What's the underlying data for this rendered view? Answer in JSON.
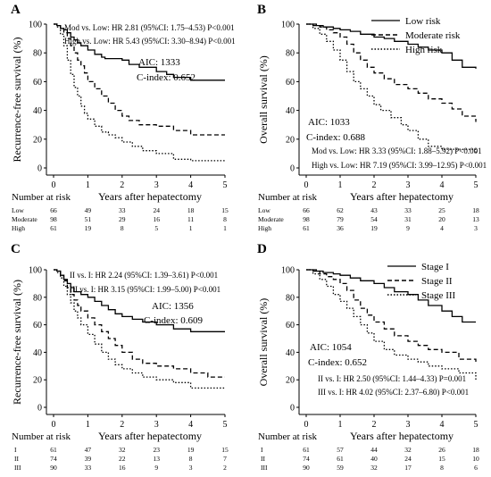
{
  "chart_data": [
    {
      "type": "line",
      "panel_label": "A",
      "ylabel": "Recurrence-free survival (%)",
      "xlabel": "Years after hepatectomy",
      "xlim": [
        0,
        5
      ],
      "ylim": [
        0,
        100
      ],
      "x_ticks": [
        "0",
        "1",
        "2",
        "3",
        "4",
        "5"
      ],
      "y_ticks": [
        "0",
        "20",
        "40",
        "60",
        "80",
        "100"
      ],
      "annotations": [
        "Mod vs. Low: HR 2.81 (95%CI: 1.75–4.53)   P<0.001",
        "High vs. Low: HR 5.43 (95%CI: 3.30–8.94) P<0.001",
        "AIC: 1333",
        "C-index: 0.652"
      ],
      "legend": [],
      "series": [
        {
          "style": "solid",
          "x": [
            0,
            0.1,
            0.2,
            0.3,
            0.4,
            0.5,
            0.6,
            0.7,
            0.8,
            1.0,
            1.2,
            1.4,
            1.5,
            2.0,
            2.2,
            2.5,
            3.0,
            3.3,
            3.5,
            3.8,
            4.0,
            4.5,
            5.0
          ],
          "y": [
            100,
            99,
            97,
            96,
            94,
            91,
            89,
            87,
            85,
            82,
            79,
            77,
            76,
            75,
            72,
            70,
            67,
            65,
            63,
            63,
            61,
            61,
            61
          ]
        },
        {
          "style": "dashed",
          "x": [
            0,
            0.1,
            0.2,
            0.3,
            0.4,
            0.5,
            0.6,
            0.7,
            0.8,
            0.9,
            1.0,
            1.2,
            1.4,
            1.6,
            1.8,
            2.0,
            2.2,
            2.5,
            3.0,
            3.5,
            4.0,
            4.5,
            5.0
          ],
          "y": [
            100,
            99,
            97,
            94,
            90,
            85,
            80,
            75,
            71,
            66,
            60,
            55,
            50,
            45,
            40,
            36,
            33,
            30,
            29,
            26,
            23,
            23,
            23
          ]
        },
        {
          "style": "dotted",
          "x": [
            0,
            0.1,
            0.2,
            0.3,
            0.4,
            0.5,
            0.6,
            0.7,
            0.8,
            0.9,
            1.0,
            1.2,
            1.4,
            1.6,
            1.8,
            2.0,
            2.3,
            2.6,
            3.0,
            3.5,
            4.0,
            5.0
          ],
          "y": [
            100,
            98,
            93,
            85,
            75,
            65,
            56,
            50,
            43,
            38,
            34,
            29,
            25,
            23,
            21,
            18,
            15,
            12,
            10,
            6,
            5,
            5
          ]
        }
      ],
      "risk_table": {
        "header": "Number at risk",
        "rows": [
          {
            "label": "Low",
            "values": [
              "66",
              "49",
              "33",
              "24",
              "18",
              "15"
            ]
          },
          {
            "label": "Moderate",
            "values": [
              "98",
              "51",
              "29",
              "16",
              "11",
              "8"
            ]
          },
          {
            "label": "High",
            "values": [
              "61",
              "19",
              "8",
              "5",
              "1",
              "1"
            ]
          }
        ]
      }
    },
    {
      "type": "line",
      "panel_label": "B",
      "ylabel": "Overall survival (%)",
      "xlabel": "Years after hepatectomy",
      "xlim": [
        0,
        5
      ],
      "ylim": [
        0,
        100
      ],
      "x_ticks": [
        "0",
        "1",
        "2",
        "3",
        "4",
        "5"
      ],
      "y_ticks": [
        "0",
        "20",
        "40",
        "60",
        "80",
        "100"
      ],
      "annotations": [
        "AIC: 1033",
        "C-index: 0.688",
        "Mod vs. Low: HR 3.33 (95%CI: 1.88–5.92)   P<0.001",
        "High vs. Low: HR 7.19 (95%CI: 3.99–12.95) P<0.001"
      ],
      "legend": [
        "Low risk",
        "Moderate risk",
        "High risk"
      ],
      "series": [
        {
          "name": "Low risk",
          "style": "solid",
          "x": [
            0,
            0.3,
            0.5,
            0.8,
            1.0,
            1.3,
            1.6,
            2.0,
            2.3,
            2.6,
            3.0,
            3.3,
            3.6,
            4.0,
            4.3,
            4.6,
            5.0
          ],
          "y": [
            100,
            99,
            98,
            97,
            96,
            95,
            93,
            91,
            90,
            88,
            86,
            84,
            82,
            80,
            75,
            70,
            69
          ]
        },
        {
          "name": "Moderate risk",
          "style": "dashed",
          "x": [
            0,
            0.2,
            0.4,
            0.6,
            0.8,
            1.0,
            1.2,
            1.4,
            1.6,
            1.8,
            2.0,
            2.3,
            2.6,
            3.0,
            3.3,
            3.6,
            4.0,
            4.3,
            4.6,
            5.0
          ],
          "y": [
            100,
            99,
            98,
            96,
            94,
            91,
            86,
            80,
            75,
            70,
            66,
            62,
            58,
            55,
            52,
            48,
            45,
            41,
            36,
            32
          ]
        },
        {
          "name": "High risk",
          "style": "dotted",
          "x": [
            0,
            0.2,
            0.4,
            0.6,
            0.8,
            1.0,
            1.2,
            1.4,
            1.6,
            1.8,
            2.0,
            2.2,
            2.5,
            2.8,
            3.0,
            3.3,
            3.6,
            4.0,
            4.5,
            5.0
          ],
          "y": [
            100,
            97,
            93,
            88,
            82,
            75,
            67,
            60,
            55,
            50,
            44,
            40,
            35,
            30,
            26,
            20,
            15,
            13,
            13,
            10
          ]
        }
      ],
      "risk_table": {
        "header": "Number at risk",
        "rows": [
          {
            "label": "Low",
            "values": [
              "66",
              "62",
              "43",
              "33",
              "25",
              "18"
            ]
          },
          {
            "label": "Moderate",
            "values": [
              "98",
              "79",
              "54",
              "31",
              "20",
              "13"
            ]
          },
          {
            "label": "High",
            "values": [
              "61",
              "36",
              "19",
              "9",
              "4",
              "3"
            ]
          }
        ]
      }
    },
    {
      "type": "line",
      "panel_label": "C",
      "ylabel": "Recurrence-free survival (%)",
      "xlabel": "Years after hepatectomy",
      "xlim": [
        0,
        5
      ],
      "ylim": [
        0,
        100
      ],
      "x_ticks": [
        "0",
        "1",
        "2",
        "3",
        "4",
        "5"
      ],
      "y_ticks": [
        "0",
        "20",
        "40",
        "60",
        "80",
        "100"
      ],
      "annotations": [
        "II vs. I: HR 2.24 (95%CI: 1.39–3.61)   P<0.001",
        "III vs. I: HR 3.15 (95%CI: 1.99–5.00) P<0.001",
        "AIC: 1356",
        "C-index: 0.609"
      ],
      "legend": [],
      "series": [
        {
          "style": "solid",
          "x": [
            0,
            0.1,
            0.2,
            0.3,
            0.4,
            0.5,
            0.6,
            0.8,
            1.0,
            1.2,
            1.4,
            1.6,
            1.8,
            2.0,
            2.3,
            2.6,
            3.0,
            3.5,
            4.0,
            5.0
          ],
          "y": [
            100,
            99,
            96,
            93,
            90,
            87,
            84,
            82,
            80,
            77,
            74,
            71,
            68,
            66,
            64,
            62,
            60,
            57,
            55,
            55
          ]
        },
        {
          "style": "dashed",
          "x": [
            0,
            0.1,
            0.2,
            0.3,
            0.4,
            0.5,
            0.6,
            0.7,
            0.8,
            1.0,
            1.2,
            1.4,
            1.6,
            1.8,
            2.0,
            2.3,
            2.6,
            3.0,
            3.5,
            4.0,
            4.5,
            5.0
          ],
          "y": [
            100,
            99,
            96,
            92,
            87,
            82,
            78,
            74,
            70,
            65,
            60,
            55,
            50,
            45,
            40,
            35,
            32,
            30,
            28,
            25,
            22,
            22
          ]
        },
        {
          "style": "dotted",
          "x": [
            0,
            0.1,
            0.2,
            0.3,
            0.4,
            0.5,
            0.6,
            0.7,
            0.8,
            1.0,
            1.2,
            1.4,
            1.6,
            1.8,
            2.0,
            2.3,
            2.6,
            3.0,
            3.5,
            4.0,
            5.0
          ],
          "y": [
            100,
            98,
            94,
            88,
            82,
            76,
            70,
            65,
            60,
            53,
            46,
            40,
            35,
            31,
            28,
            25,
            22,
            20,
            18,
            14,
            14
          ]
        }
      ],
      "risk_table": {
        "header": "Number at risk",
        "rows": [
          {
            "label": "I",
            "values": [
              "61",
              "47",
              "32",
              "23",
              "19",
              "15"
            ]
          },
          {
            "label": "II",
            "values": [
              "74",
              "39",
              "22",
              "13",
              "8",
              "7"
            ]
          },
          {
            "label": "III",
            "values": [
              "90",
              "33",
              "16",
              "9",
              "3",
              "2"
            ]
          }
        ]
      }
    },
    {
      "type": "line",
      "panel_label": "D",
      "ylabel": "Overall survival (%)",
      "xlabel": "Years after hepatectomy",
      "xlim": [
        0,
        5
      ],
      "ylim": [
        0,
        100
      ],
      "x_ticks": [
        "0",
        "1",
        "2",
        "3",
        "4",
        "5"
      ],
      "y_ticks": [
        "0",
        "20",
        "40",
        "60",
        "80",
        "100"
      ],
      "annotations": [
        "AIC: 1054",
        "C-index: 0.652",
        "II vs. I: HR 2.50 (95%CI: 1.44–4.33)   P=0.001",
        "III vs. I: HR 4.02 (95%CI: 2.37–6.80) P<0.001"
      ],
      "legend": [
        "Stage I",
        "Stage II",
        "Stage III"
      ],
      "series": [
        {
          "name": "Stage I",
          "style": "solid",
          "x": [
            0,
            0.3,
            0.5,
            0.8,
            1.0,
            1.3,
            1.6,
            2.0,
            2.3,
            2.6,
            3.0,
            3.3,
            3.6,
            4.0,
            4.3,
            4.6,
            5.0
          ],
          "y": [
            100,
            99,
            98,
            97,
            96,
            94,
            92,
            90,
            87,
            84,
            82,
            78,
            74,
            70,
            66,
            62,
            62
          ]
        },
        {
          "name": "Stage II",
          "style": "dashed",
          "x": [
            0,
            0.2,
            0.4,
            0.6,
            0.8,
            1.0,
            1.2,
            1.4,
            1.6,
            1.8,
            2.0,
            2.3,
            2.6,
            3.0,
            3.3,
            3.6,
            4.0,
            4.5,
            5.0
          ],
          "y": [
            100,
            99,
            97,
            95,
            93,
            90,
            85,
            78,
            72,
            67,
            62,
            57,
            52,
            48,
            45,
            42,
            40,
            35,
            32
          ]
        },
        {
          "name": "Stage III",
          "style": "dotted",
          "x": [
            0,
            0.2,
            0.4,
            0.6,
            0.8,
            1.0,
            1.2,
            1.4,
            1.6,
            1.8,
            2.0,
            2.3,
            2.6,
            3.0,
            3.3,
            3.6,
            4.0,
            4.5,
            5.0
          ],
          "y": [
            100,
            97,
            93,
            88,
            82,
            77,
            72,
            66,
            60,
            54,
            48,
            42,
            38,
            35,
            33,
            30,
            28,
            25,
            20
          ]
        }
      ],
      "risk_table": {
        "header": "Number at risk",
        "rows": [
          {
            "label": "I",
            "values": [
              "61",
              "57",
              "44",
              "32",
              "26",
              "18"
            ]
          },
          {
            "label": "II",
            "values": [
              "74",
              "61",
              "40",
              "24",
              "15",
              "10"
            ]
          },
          {
            "label": "III",
            "values": [
              "90",
              "59",
              "32",
              "17",
              "8",
              "6"
            ]
          }
        ]
      }
    }
  ]
}
